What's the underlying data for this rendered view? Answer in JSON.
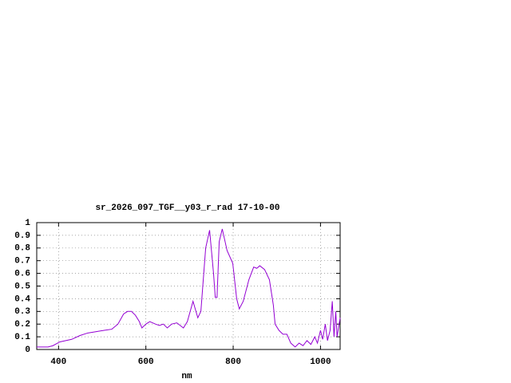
{
  "chart_data": {
    "type": "line",
    "title": "sr_2026_097_TGF__y03_r_rad 17-10-00",
    "x_label": "nm",
    "xlim": [
      350,
      1045
    ],
    "ylim": [
      0,
      1
    ],
    "xticks": [
      400,
      600,
      800,
      1000
    ],
    "yticks": [
      0,
      0.1,
      0.2,
      0.3,
      0.4,
      0.5,
      0.6,
      0.7,
      0.8,
      0.9,
      1
    ],
    "grid": true,
    "series": [
      {
        "color": "#9400d3",
        "x": [
          350,
          376,
          387,
          403,
          430,
          449,
          467,
          485,
          503,
          522,
          536,
          549,
          558,
          567,
          576,
          585,
          591,
          600,
          609,
          622,
          631,
          640,
          649,
          659,
          671,
          686,
          695,
          708,
          719,
          726,
          737,
          746,
          755,
          759,
          763,
          768,
          775,
          786,
          799,
          808,
          814,
          823,
          836,
          847,
          854,
          861,
          872,
          883,
          892,
          896,
          905,
          914,
          923,
          932,
          942,
          951,
          960,
          969,
          978,
          987,
          993,
          1000,
          1005,
          1011,
          1016,
          1022,
          1027,
          1031,
          1035,
          1038,
          1045
        ],
        "values": [
          0.02,
          0.02,
          0.03,
          0.06,
          0.08,
          0.11,
          0.13,
          0.14,
          0.15,
          0.16,
          0.2,
          0.28,
          0.3,
          0.3,
          0.27,
          0.22,
          0.17,
          0.2,
          0.22,
          0.2,
          0.19,
          0.2,
          0.17,
          0.2,
          0.21,
          0.17,
          0.22,
          0.38,
          0.25,
          0.3,
          0.8,
          0.94,
          0.6,
          0.41,
          0.41,
          0.85,
          0.95,
          0.78,
          0.68,
          0.4,
          0.32,
          0.38,
          0.55,
          0.65,
          0.64,
          0.66,
          0.63,
          0.55,
          0.35,
          0.2,
          0.15,
          0.12,
          0.12,
          0.05,
          0.02,
          0.05,
          0.03,
          0.07,
          0.04,
          0.1,
          0.05,
          0.15,
          0.08,
          0.2,
          0.07,
          0.15,
          0.38,
          0.1,
          0.3,
          0.1,
          0.25
        ]
      }
    ]
  }
}
